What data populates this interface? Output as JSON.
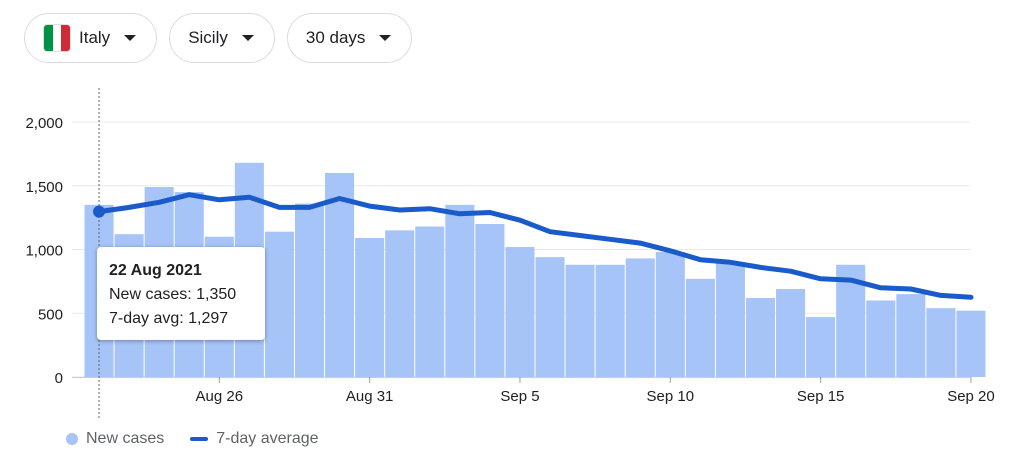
{
  "filters": {
    "country": {
      "label": "Italy",
      "flag_colors": [
        "#009246",
        "#ffffff",
        "#ce2b37"
      ]
    },
    "region": {
      "label": "Sicily"
    },
    "range": {
      "label": "30 days"
    }
  },
  "tooltip": {
    "date": "22 Aug 2021",
    "new_cases": "New cases: 1,350",
    "avg": "7-day avg: 1,297"
  },
  "legend": {
    "bars": "New cases",
    "line": "7-day average"
  },
  "colors": {
    "bar": "#a6c4f7",
    "line": "#1a5bcb",
    "grid": "#e8e8e8",
    "axis": "#5f6368"
  },
  "chart_data": {
    "type": "bar",
    "title": "",
    "xlabel": "",
    "ylabel": "",
    "ylim": [
      0,
      2000
    ],
    "yticks": [
      0,
      500,
      1000,
      1500,
      2000
    ],
    "ytick_labels": [
      "0",
      "500",
      "1,000",
      "1,500",
      "2,000"
    ],
    "grid": true,
    "legend_position": "bottom-left",
    "categories": [
      "Aug 22",
      "Aug 23",
      "Aug 24",
      "Aug 25",
      "Aug 26",
      "Aug 27",
      "Aug 28",
      "Aug 29",
      "Aug 30",
      "Aug 31",
      "Sep 1",
      "Sep 2",
      "Sep 3",
      "Sep 4",
      "Sep 5",
      "Sep 6",
      "Sep 7",
      "Sep 8",
      "Sep 9",
      "Sep 10",
      "Sep 11",
      "Sep 12",
      "Sep 13",
      "Sep 14",
      "Sep 15",
      "Sep 16",
      "Sep 17",
      "Sep 18",
      "Sep 19",
      "Sep 20"
    ],
    "x_tick_labels": [
      {
        "index": 4,
        "label": "Aug 26"
      },
      {
        "index": 9,
        "label": "Aug 31"
      },
      {
        "index": 14,
        "label": "Sep 5"
      },
      {
        "index": 19,
        "label": "Sep 10"
      },
      {
        "index": 24,
        "label": "Sep 15"
      },
      {
        "index": 29,
        "label": "Sep 20"
      }
    ],
    "highlight_index": 0,
    "series": [
      {
        "name": "New cases",
        "type": "bar",
        "values": [
          1350,
          1120,
          1490,
          1450,
          1100,
          1680,
          1140,
          1360,
          1600,
          1090,
          1150,
          1180,
          1350,
          1200,
          1020,
          940,
          880,
          880,
          930,
          980,
          770,
          890,
          620,
          690,
          470,
          880,
          600,
          650,
          540,
          520
        ]
      },
      {
        "name": "7-day average",
        "type": "line",
        "values": [
          1297,
          1330,
          1370,
          1430,
          1390,
          1410,
          1330,
          1330,
          1400,
          1340,
          1310,
          1320,
          1280,
          1290,
          1230,
          1140,
          1110,
          1080,
          1050,
          990,
          920,
          900,
          860,
          830,
          770,
          760,
          700,
          690,
          640,
          625
        ]
      }
    ]
  }
}
